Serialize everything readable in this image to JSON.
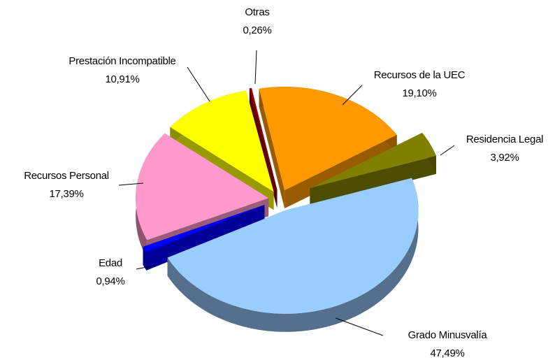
{
  "chart_data": {
    "type": "pie3d",
    "categories": [
      "Otras",
      "Recursos de la UEC",
      "Residencia Legal",
      "Grado Minusvalía",
      "Edad",
      "Recursos Personal",
      "Prestación Incompatible"
    ],
    "values": [
      0.26,
      19.1,
      3.92,
      47.49,
      0.94,
      17.39,
      10.91
    ],
    "value_labels": [
      "0,26%",
      "19,10%",
      "3,92%",
      "47,49%",
      "0,94%",
      "17,39%",
      "10,91%"
    ],
    "colors": [
      "#990000",
      "#FF9900",
      "#808000",
      "#99CCFF",
      "#0000FF",
      "#FF99CC",
      "#FFFF00"
    ]
  }
}
